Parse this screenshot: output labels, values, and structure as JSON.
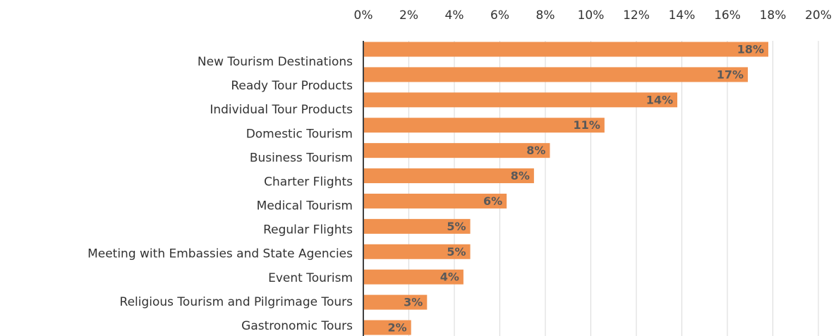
{
  "chart_data": {
    "type": "bar",
    "orientation": "horizontal",
    "categories": [
      "New Tourism Destinations",
      "Ready Tour Products",
      "Individual Tour Products",
      "Domestic Tourism",
      "Business Tourism",
      "Charter Flights",
      "Medical Tourism",
      "Regular Flights",
      "Meeting with Embassies and State Agencies",
      "Event Tourism",
      "Religious Tourism and Pilgrimage Tours",
      "Gastronomic Tours"
    ],
    "values": [
      17.8,
      16.9,
      13.8,
      10.6,
      8.2,
      7.5,
      6.3,
      4.7,
      4.7,
      4.4,
      2.8,
      2.1
    ],
    "value_labels": [
      "18%",
      "17%",
      "14%",
      "11%",
      "8%",
      "8%",
      "6%",
      "5%",
      "5%",
      "4%",
      "3%",
      "2%"
    ],
    "color": "#f0914f",
    "xlim": [
      0,
      20
    ],
    "xticks": [
      {
        "value": 0,
        "label": "0%"
      },
      {
        "value": 2,
        "label": "2%"
      },
      {
        "value": 4,
        "label": "4%"
      },
      {
        "value": 6,
        "label": "6%"
      },
      {
        "value": 8,
        "label": "8%"
      },
      {
        "value": 10,
        "label": "10%"
      },
      {
        "value": 12,
        "label": "12%"
      },
      {
        "value": 14,
        "label": "14%"
      },
      {
        "value": 16,
        "label": "16%"
      },
      {
        "value": 18,
        "label": "18%"
      },
      {
        "value": 20,
        "label": "20%"
      }
    ],
    "grid": true
  }
}
